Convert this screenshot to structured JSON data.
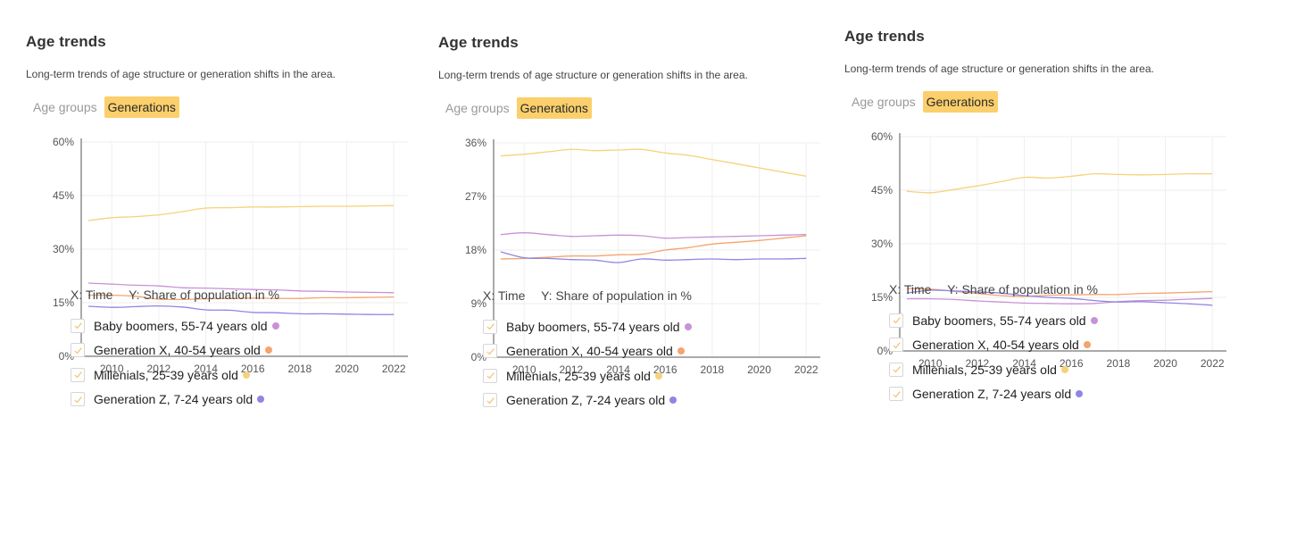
{
  "title": "Age trends",
  "description": "Long-term trends of age structure or generation shifts in the area.",
  "tabs": [
    {
      "label": "Age groups",
      "active": false
    },
    {
      "label": "Generations",
      "active": true
    }
  ],
  "axis_caption": {
    "x": "X: Time",
    "y": "Y: Share of population in %"
  },
  "legend": [
    {
      "label": "Baby boomers, 55-74 years old",
      "color": "#c792d6",
      "checked": true
    },
    {
      "label": "Generation X, 40-54 years old",
      "color": "#f4a46e",
      "checked": true
    },
    {
      "label": "Millenials, 25-39 years old",
      "color": "#f6d27a",
      "checked": true
    },
    {
      "label": "Generation Z, 7-24 years old",
      "color": "#8f86e3",
      "checked": true
    }
  ],
  "chart_data": [
    {
      "type": "line",
      "x": [
        2009,
        2010,
        2011,
        2012,
        2013,
        2014,
        2015,
        2016,
        2017,
        2018,
        2019,
        2020,
        2021,
        2022
      ],
      "xticks": [
        2010,
        2012,
        2014,
        2016,
        2018,
        2020,
        2022
      ],
      "xlim": [
        2008.7,
        2022.6
      ],
      "ylim": [
        0,
        60
      ],
      "yticks": [
        0,
        15,
        30,
        45,
        60
      ],
      "ytick_labels": [
        "0%",
        "15%",
        "30%",
        "45%",
        "60%"
      ],
      "xlabel": "Time",
      "ylabel": "Share of population in %",
      "grid": true,
      "series": [
        {
          "name": "Baby boomers, 55-74 years old",
          "color": "#c792d6",
          "values": [
            20.5,
            20.2,
            19.9,
            19.7,
            19.2,
            19.1,
            18.9,
            18.7,
            18.6,
            18.3,
            18.2,
            18.0,
            17.9,
            17.8
          ]
        },
        {
          "name": "Generation X, 40-54 years old",
          "color": "#f4a46e",
          "values": [
            17.1,
            17.1,
            16.8,
            16.0,
            15.9,
            16.1,
            16.2,
            16.3,
            16.2,
            16.2,
            16.4,
            16.4,
            16.5,
            16.6
          ]
        },
        {
          "name": "Millenials, 25-39 years old",
          "color": "#f6d27a",
          "values": [
            38.0,
            38.8,
            39.1,
            39.6,
            40.5,
            41.5,
            41.6,
            41.8,
            41.8,
            41.9,
            42.0,
            42.0,
            42.1,
            42.2
          ]
        },
        {
          "name": "Generation Z, 7-24 years old",
          "color": "#8f86e3",
          "values": [
            14.0,
            13.7,
            13.9,
            14.1,
            13.8,
            13.0,
            12.9,
            12.3,
            12.2,
            11.9,
            11.9,
            11.8,
            11.7,
            11.7
          ]
        }
      ]
    },
    {
      "type": "line",
      "x": [
        2009,
        2010,
        2011,
        2012,
        2013,
        2014,
        2015,
        2016,
        2017,
        2018,
        2019,
        2020,
        2021,
        2022
      ],
      "xticks": [
        2010,
        2012,
        2014,
        2016,
        2018,
        2020,
        2022
      ],
      "xlim": [
        2008.7,
        2022.6
      ],
      "ylim": [
        0,
        36
      ],
      "yticks": [
        0,
        9,
        18,
        27,
        36
      ],
      "ytick_labels": [
        "0%",
        "9%",
        "18%",
        "27%",
        "36%"
      ],
      "xlabel": "Time",
      "ylabel": "Share of population in %",
      "grid": true,
      "series": [
        {
          "name": "Baby boomers, 55-74 years old",
          "color": "#c792d6",
          "values": [
            20.6,
            20.9,
            20.6,
            20.3,
            20.4,
            20.5,
            20.4,
            20.0,
            20.1,
            20.2,
            20.3,
            20.4,
            20.5,
            20.6
          ]
        },
        {
          "name": "Generation X, 40-54 years old",
          "color": "#f4a46e",
          "values": [
            16.5,
            16.6,
            16.8,
            17.0,
            17.0,
            17.2,
            17.3,
            18.0,
            18.4,
            19.0,
            19.3,
            19.6,
            20.0,
            20.4
          ]
        },
        {
          "name": "Millenials, 25-39 years old",
          "color": "#f6d27a",
          "values": [
            33.8,
            34.1,
            34.5,
            34.9,
            34.7,
            34.8,
            34.9,
            34.3,
            33.9,
            33.2,
            32.5,
            31.8,
            31.1,
            30.4
          ]
        },
        {
          "name": "Generation Z, 7-24 years old",
          "color": "#8f86e3",
          "values": [
            17.7,
            16.7,
            16.6,
            16.4,
            16.3,
            15.9,
            16.5,
            16.3,
            16.4,
            16.5,
            16.4,
            16.5,
            16.5,
            16.6
          ]
        }
      ]
    },
    {
      "type": "line",
      "x": [
        2009,
        2010,
        2011,
        2012,
        2013,
        2014,
        2015,
        2016,
        2017,
        2018,
        2019,
        2020,
        2021,
        2022
      ],
      "xticks": [
        2010,
        2012,
        2014,
        2016,
        2018,
        2020,
        2022
      ],
      "xlim": [
        2008.7,
        2022.6
      ],
      "ylim": [
        0,
        60
      ],
      "yticks": [
        0,
        15,
        30,
        45,
        60
      ],
      "ytick_labels": [
        "0%",
        "15%",
        "30%",
        "45%",
        "60%"
      ],
      "xlabel": "Time",
      "ylabel": "Share of population in %",
      "grid": true,
      "series": [
        {
          "name": "Baby boomers, 55-74 years old",
          "color": "#c792d6",
          "values": [
            14.6,
            14.6,
            14.4,
            14.0,
            13.7,
            13.4,
            13.3,
            13.2,
            13.3,
            13.8,
            14.1,
            14.2,
            14.5,
            14.7
          ]
        },
        {
          "name": "Generation X, 40-54 years old",
          "color": "#f4a46e",
          "values": [
            17.5,
            17.3,
            16.7,
            16.1,
            15.5,
            15.3,
            15.6,
            15.7,
            15.8,
            15.8,
            16.1,
            16.2,
            16.4,
            16.6
          ]
        },
        {
          "name": "Millenials, 25-39 years old",
          "color": "#f6d27a",
          "values": [
            44.7,
            44.3,
            45.2,
            46.2,
            47.4,
            48.6,
            48.4,
            48.9,
            49.6,
            49.4,
            49.3,
            49.4,
            49.6,
            49.6
          ]
        },
        {
          "name": "Generation Z, 7-24 years old",
          "color": "#8f86e3",
          "values": [
            16.2,
            17.0,
            16.8,
            16.5,
            16.2,
            15.5,
            15.0,
            14.7,
            14.1,
            13.7,
            13.8,
            13.5,
            13.2,
            12.8
          ]
        }
      ]
    }
  ]
}
